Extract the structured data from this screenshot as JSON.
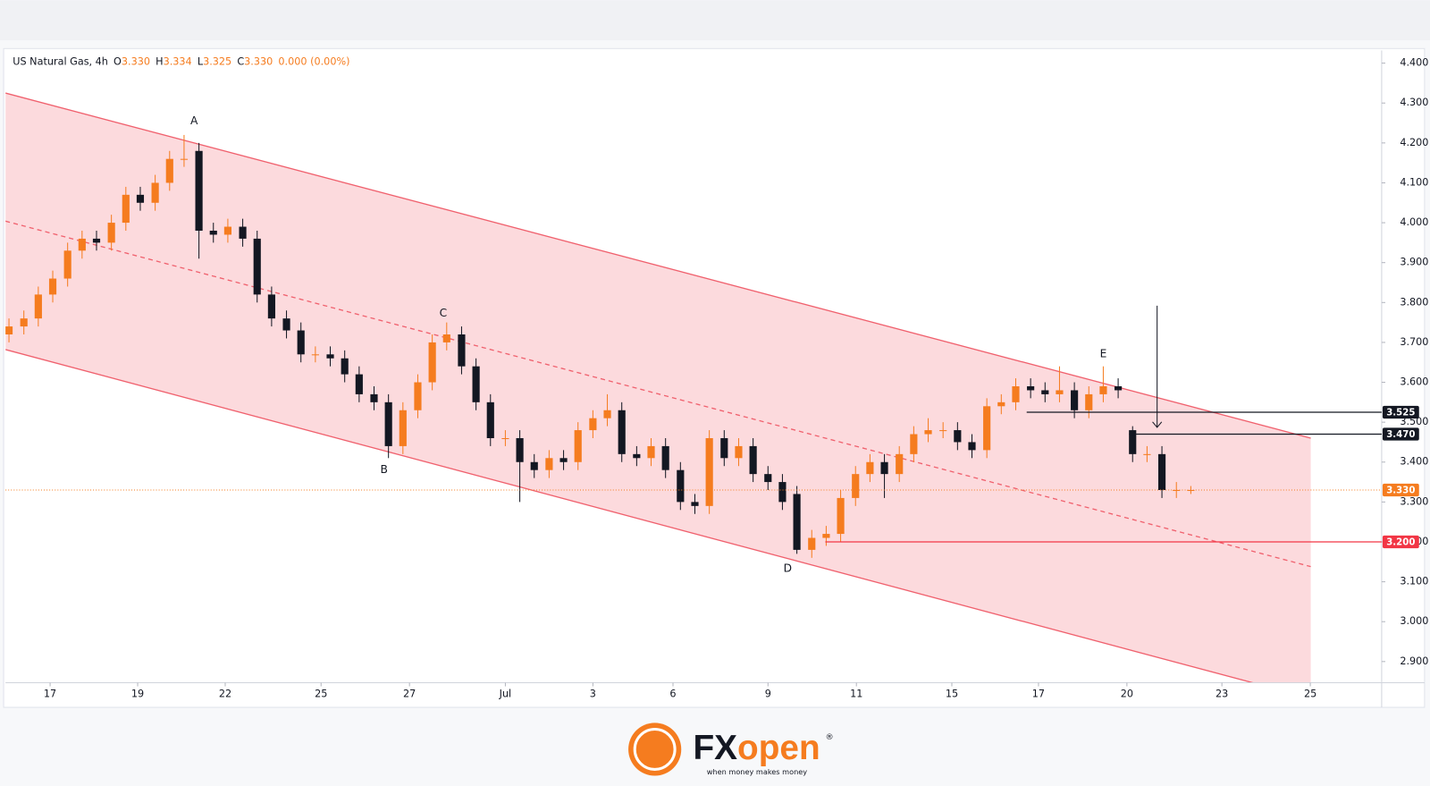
{
  "chart_data": {
    "type": "candlestick",
    "header": {
      "symbol": "US Natural Gas, 4h",
      "open_label": "O",
      "open": "3.330",
      "high_label": "H",
      "high": "3.334",
      "low_label": "L",
      "low": "3.325",
      "close_label": "C",
      "close": "3.330",
      "change": "0.000 (0.00%)"
    },
    "up_color": "#f57c1f",
    "down_color": "#131722",
    "x": [
      -0.94,
      -0.6,
      -0.27,
      0.06,
      0.4,
      0.73,
      1.06,
      1.4,
      1.73,
      2.06,
      2.4,
      2.73,
      3.06,
      3.4,
      3.73,
      4.06,
      4.4,
      4.73,
      5.06,
      5.4,
      5.73,
      6.06,
      6.4,
      6.73,
      7.06,
      7.4,
      7.73,
      8.06,
      8.4,
      8.73,
      9.06,
      9.4,
      9.73,
      10.06,
      10.4,
      10.73,
      11.06,
      11.4,
      11.73,
      12.06,
      12.4,
      12.73,
      13.06,
      13.4,
      13.73,
      14.06,
      14.4,
      14.73,
      15.06,
      15.4,
      15.73,
      16.06,
      16.4,
      16.73,
      17.06,
      17.4,
      17.73,
      18.06,
      18.4,
      18.73,
      19.06,
      19.4,
      19.73,
      20.06,
      20.4,
      20.73,
      21.06,
      21.4,
      21.73,
      22.06,
      22.4,
      22.73,
      23.06,
      23.4,
      23.73,
      24.06,
      24.4,
      24.73,
      25.06,
      25.4,
      25.73,
      26.06
    ],
    "open": [
      3.72,
      3.74,
      3.76,
      3.82,
      3.86,
      3.93,
      3.96,
      3.95,
      4.0,
      4.07,
      4.05,
      4.1,
      4.16,
      4.18,
      3.98,
      3.97,
      3.99,
      3.96,
      3.82,
      3.76,
      3.73,
      3.67,
      3.67,
      3.66,
      3.62,
      3.57,
      3.55,
      3.44,
      3.53,
      3.6,
      3.7,
      3.72,
      3.64,
      3.55,
      3.46,
      3.46,
      3.4,
      3.38,
      3.41,
      3.4,
      3.48,
      3.51,
      3.53,
      3.42,
      3.41,
      3.44,
      3.38,
      3.3,
      3.29,
      3.46,
      3.41,
      3.44,
      3.37,
      3.35,
      3.32,
      3.18,
      3.21,
      3.22,
      3.31,
      3.37,
      3.4,
      3.37,
      3.42,
      3.47,
      3.48,
      3.48,
      3.45,
      3.43,
      3.54,
      3.55,
      3.59,
      3.58,
      3.57,
      3.58,
      3.53,
      3.57,
      3.59,
      3.48,
      3.42,
      3.42,
      3.33,
      3.33
    ],
    "high": [
      3.76,
      3.78,
      3.84,
      3.88,
      3.95,
      3.98,
      3.98,
      4.02,
      4.09,
      4.09,
      4.12,
      4.18,
      4.22,
      4.2,
      4.0,
      4.01,
      4.01,
      3.98,
      3.84,
      3.78,
      3.75,
      3.69,
      3.69,
      3.68,
      3.64,
      3.59,
      3.57,
      3.55,
      3.62,
      3.72,
      3.75,
      3.74,
      3.66,
      3.57,
      3.48,
      3.48,
      3.42,
      3.43,
      3.43,
      3.5,
      3.53,
      3.57,
      3.55,
      3.44,
      3.46,
      3.46,
      3.4,
      3.32,
      3.48,
      3.48,
      3.46,
      3.46,
      3.39,
      3.37,
      3.34,
      3.23,
      3.24,
      3.33,
      3.39,
      3.42,
      3.42,
      3.44,
      3.49,
      3.51,
      3.5,
      3.5,
      3.47,
      3.56,
      3.57,
      3.61,
      3.61,
      3.6,
      3.64,
      3.6,
      3.59,
      3.64,
      3.61,
      3.49,
      3.44,
      3.44,
      3.35,
      3.34
    ],
    "low": [
      3.7,
      3.72,
      3.74,
      3.8,
      3.84,
      3.91,
      3.93,
      3.93,
      3.98,
      4.03,
      4.03,
      4.08,
      4.14,
      3.91,
      3.95,
      3.95,
      3.94,
      3.8,
      3.74,
      3.71,
      3.65,
      3.65,
      3.64,
      3.6,
      3.55,
      3.53,
      3.41,
      3.42,
      3.51,
      3.58,
      3.68,
      3.62,
      3.53,
      3.44,
      3.44,
      3.3,
      3.36,
      3.36,
      3.38,
      3.38,
      3.46,
      3.49,
      3.4,
      3.39,
      3.39,
      3.36,
      3.28,
      3.27,
      3.27,
      3.39,
      3.39,
      3.35,
      3.33,
      3.28,
      3.17,
      3.16,
      3.19,
      3.2,
      3.29,
      3.35,
      3.31,
      3.35,
      3.4,
      3.45,
      3.46,
      3.43,
      3.41,
      3.41,
      3.52,
      3.53,
      3.56,
      3.55,
      3.55,
      3.51,
      3.51,
      3.55,
      3.56,
      3.4,
      3.4,
      3.31,
      3.31,
      3.32
    ],
    "close": [
      3.74,
      3.76,
      3.82,
      3.86,
      3.93,
      3.96,
      3.95,
      4.0,
      4.07,
      4.05,
      4.1,
      4.16,
      4.16,
      3.98,
      3.97,
      3.99,
      3.96,
      3.82,
      3.76,
      3.73,
      3.67,
      3.67,
      3.66,
      3.62,
      3.57,
      3.55,
      3.44,
      3.53,
      3.6,
      3.7,
      3.72,
      3.64,
      3.55,
      3.46,
      3.46,
      3.4,
      3.38,
      3.41,
      3.4,
      3.48,
      3.51,
      3.53,
      3.42,
      3.41,
      3.44,
      3.38,
      3.3,
      3.29,
      3.46,
      3.41,
      3.44,
      3.37,
      3.35,
      3.3,
      3.18,
      3.21,
      3.22,
      3.31,
      3.37,
      3.4,
      3.37,
      3.42,
      3.47,
      3.48,
      3.48,
      3.45,
      3.43,
      3.54,
      3.55,
      3.59,
      3.58,
      3.57,
      3.58,
      3.53,
      3.57,
      3.59,
      3.58,
      3.42,
      3.42,
      3.33,
      3.33,
      3.33
    ],
    "xlim": [
      -1.02,
      30.42
    ],
    "ylim": [
      2.847,
      4.432
    ],
    "yticks": [
      {
        "value": 2.9,
        "label": "2.900"
      },
      {
        "value": 3.0,
        "label": "3.000"
      },
      {
        "value": 3.1,
        "label": "3.100"
      },
      {
        "value": 3.2,
        "label": "3.200"
      },
      {
        "value": 3.3,
        "label": "3.300"
      },
      {
        "value": 3.4,
        "label": "3.400"
      },
      {
        "value": 3.5,
        "label": "3.500"
      },
      {
        "value": 3.6,
        "label": "3.600"
      },
      {
        "value": 3.7,
        "label": "3.700"
      },
      {
        "value": 3.8,
        "label": "3.800"
      },
      {
        "value": 3.9,
        "label": "3.900"
      },
      {
        "value": 4.0,
        "label": "4.000"
      },
      {
        "value": 4.1,
        "label": "4.100"
      },
      {
        "value": 4.2,
        "label": "4.200"
      },
      {
        "value": 4.3,
        "label": "4.300"
      },
      {
        "value": 4.4,
        "label": "4.400"
      }
    ],
    "xticks": [
      {
        "value": 0,
        "label": "17"
      },
      {
        "value": 2,
        "label": "19"
      },
      {
        "value": 4,
        "label": "22"
      },
      {
        "value": 6.19,
        "label": "25"
      },
      {
        "value": 8.21,
        "label": "27"
      },
      {
        "value": 10.4,
        "label": "Jul"
      },
      {
        "value": 12.4,
        "label": "3"
      },
      {
        "value": 14.23,
        "label": "6"
      },
      {
        "value": 16.4,
        "label": "9"
      },
      {
        "value": 18.42,
        "label": "11"
      },
      {
        "value": 20.6,
        "label": "15"
      },
      {
        "value": 22.58,
        "label": "17"
      },
      {
        "value": 24.6,
        "label": "20"
      },
      {
        "value": 26.77,
        "label": "23"
      },
      {
        "value": 28.79,
        "label": "25"
      }
    ],
    "channel": {
      "color": "#f0616e",
      "fill": "#fcd3d7",
      "upper": [
        [
          -1.02,
          4.325
        ],
        [
          28.8,
          3.46
        ]
      ],
      "middle": [
        [
          -1.02,
          4.004
        ],
        [
          28.8,
          3.138
        ]
      ],
      "lower": [
        [
          -1.02,
          3.682
        ],
        [
          28.8,
          2.808
        ]
      ]
    },
    "levels": [
      {
        "value": 3.525,
        "label": "3.525",
        "x_start": 22.31,
        "color": "#131722",
        "style": "solid"
      },
      {
        "value": 3.47,
        "label": "3.470",
        "x_start": 24.65,
        "color": "#131722",
        "style": "solid"
      },
      {
        "value": 3.33,
        "label": "3.330",
        "x_start": -1.02,
        "color": "#f57c1f",
        "style": "dotted"
      },
      {
        "value": 3.2,
        "label": "3.200",
        "x_start": 17.71,
        "color": "#f23645",
        "style": "solid"
      }
    ],
    "arrow": {
      "x": 25.29,
      "from": 3.792,
      "to": 3.487
    },
    "points": [
      {
        "label": "A",
        "x": 3.29,
        "y": 4.254
      },
      {
        "label": "B",
        "x": 7.63,
        "y": 3.38
      },
      {
        "label": "C",
        "x": 8.98,
        "y": 3.773
      },
      {
        "label": "D",
        "x": 16.85,
        "y": 3.133
      },
      {
        "label": "E",
        "x": 24.06,
        "y": 3.671
      }
    ]
  },
  "footer": {
    "brand_fx": "FX",
    "brand_open": "open",
    "reg": "®",
    "tagline": "when money makes money"
  }
}
